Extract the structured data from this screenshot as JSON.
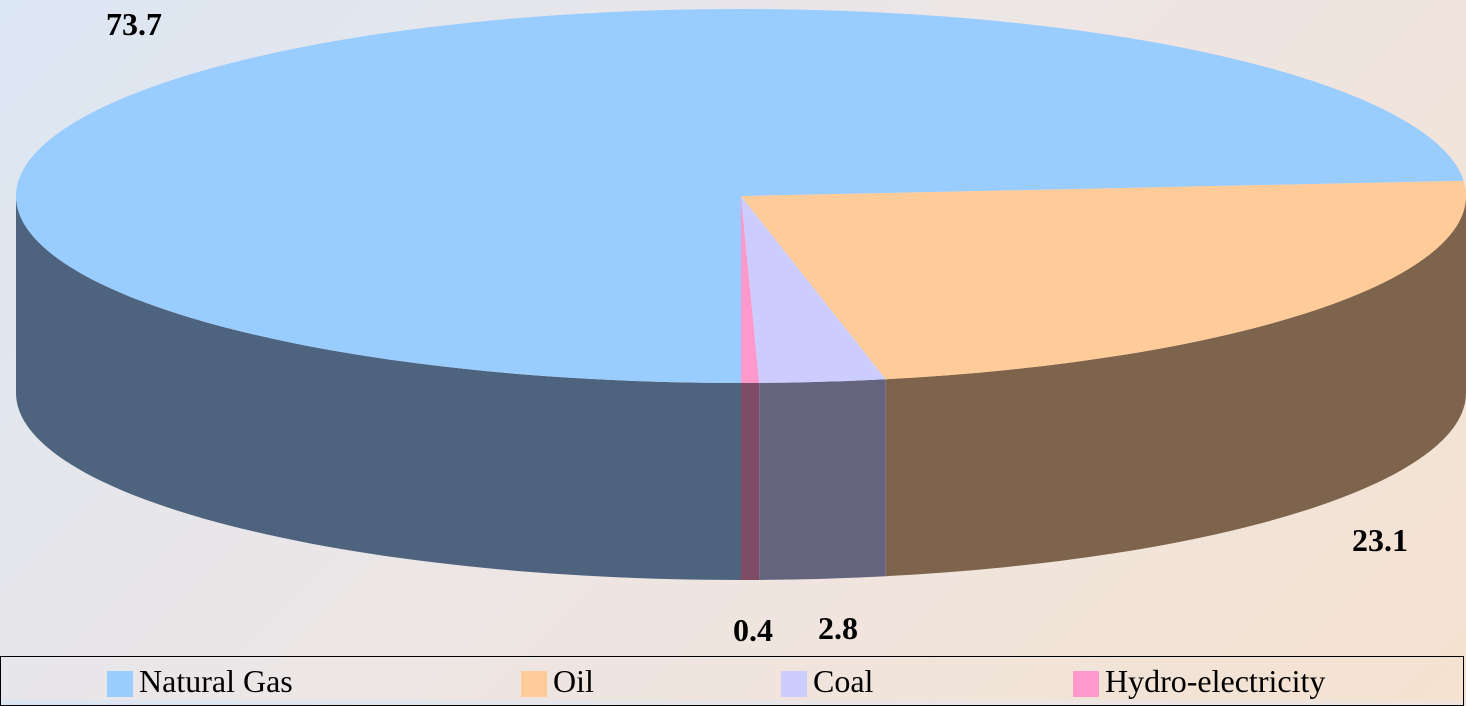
{
  "chart_data": {
    "type": "pie",
    "categories": [
      "Natural Gas",
      "Oil",
      "Coal",
      "Hydro-electricity"
    ],
    "values": [
      73.7,
      23.1,
      2.8,
      0.4
    ],
    "data_labels": [
      "73.7",
      "23.1",
      "2.8",
      "0.4"
    ],
    "colors": {
      "Natural Gas": "#99ccff",
      "Oil": "#ffcc99",
      "Coal": "#ccccff",
      "Hydro-electricity": "#ff99cc"
    },
    "side_colors": {
      "Natural Gas": "#4e647e",
      "Oil": "#7e644c",
      "Coal": "#64647e",
      "Hydro-electricity": "#7e4c64"
    },
    "three_d": true,
    "legend_position": "bottom"
  },
  "legend": {
    "items": [
      {
        "label": "Natural Gas",
        "color": "#99ccff"
      },
      {
        "label": "Oil",
        "color": "#ffcc99"
      },
      {
        "label": "Coal",
        "color": "#ccccff"
      },
      {
        "label": "Hydro-electricity",
        "color": "#ff99cc"
      }
    ]
  }
}
